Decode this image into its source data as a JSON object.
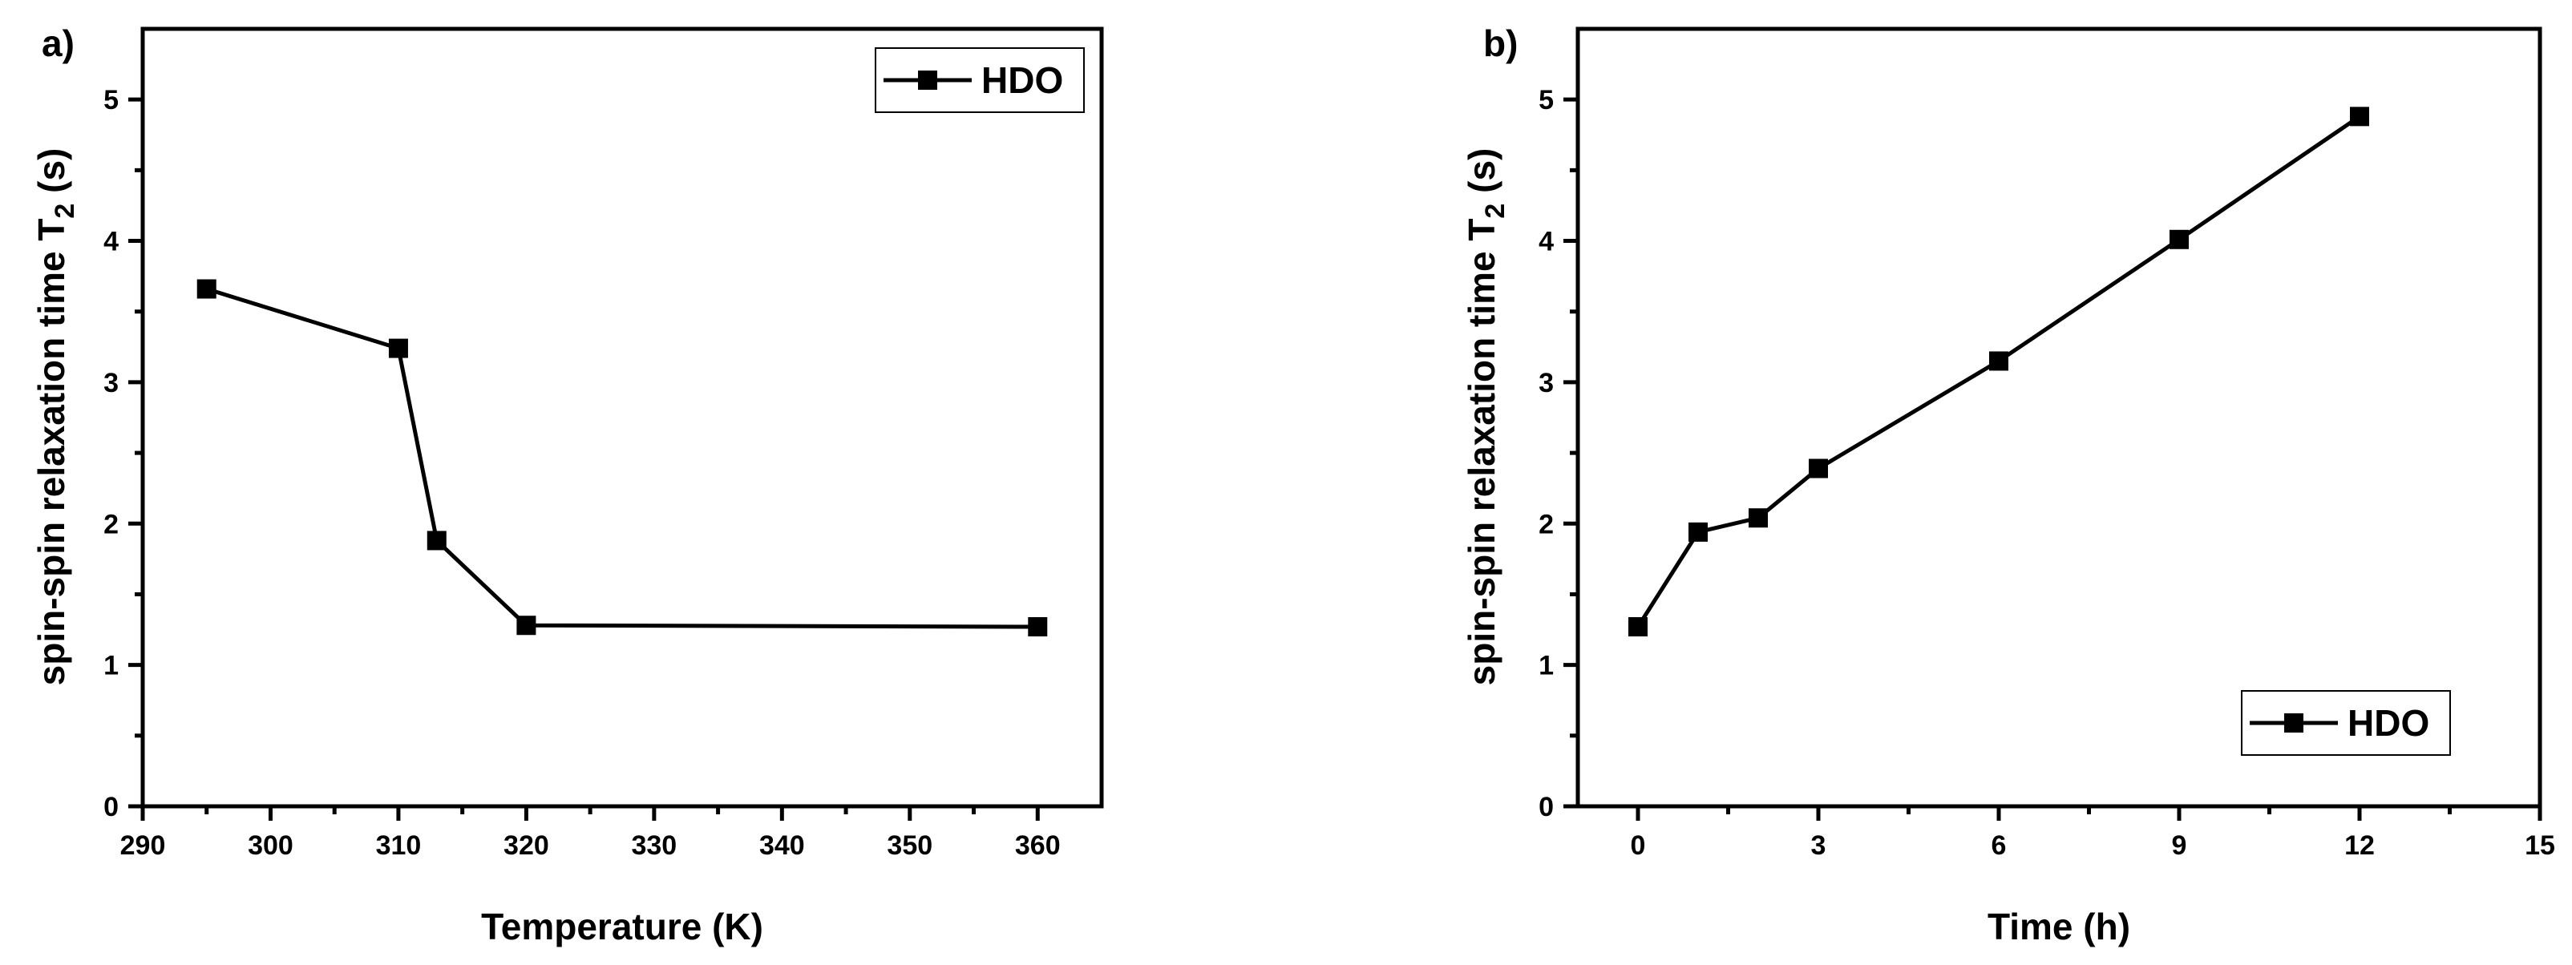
{
  "chart_data": [
    {
      "type": "line",
      "panel_label": "a)",
      "xlabel": "Temperature (K)",
      "ylabel": "spin-spin relaxation time T",
      "ylabel_subscript": "2",
      "ylabel_suffix": " (s)",
      "xlim": [
        290,
        365
      ],
      "ylim": [
        0,
        5.5
      ],
      "x_ticks": [
        290,
        300,
        310,
        320,
        330,
        340,
        350,
        360
      ],
      "y_ticks": [
        0,
        1,
        2,
        3,
        4,
        5
      ],
      "legend_position": "top-right",
      "series": [
        {
          "name": "HDO",
          "x": [
            295,
            310,
            313,
            320,
            360
          ],
          "y": [
            3.66,
            3.24,
            1.88,
            1.28,
            1.27
          ]
        }
      ]
    },
    {
      "type": "line",
      "panel_label": "b)",
      "xlabel": "Time (h)",
      "ylabel": "spin-spin relaxation time T",
      "ylabel_subscript": "2",
      "ylabel_suffix": " (s)",
      "xlim": [
        -1,
        15
      ],
      "ylim": [
        0,
        5.5
      ],
      "x_ticks": [
        0,
        3,
        6,
        9,
        12,
        15
      ],
      "y_ticks": [
        0,
        1,
        2,
        3,
        4,
        5
      ],
      "legend_position": "bottom-right",
      "series": [
        {
          "name": "HDO",
          "x": [
            0,
            1,
            2,
            3,
            6,
            9,
            12
          ],
          "y": [
            1.27,
            1.94,
            2.04,
            2.39,
            3.15,
            4.01,
            4.88
          ]
        }
      ]
    }
  ]
}
